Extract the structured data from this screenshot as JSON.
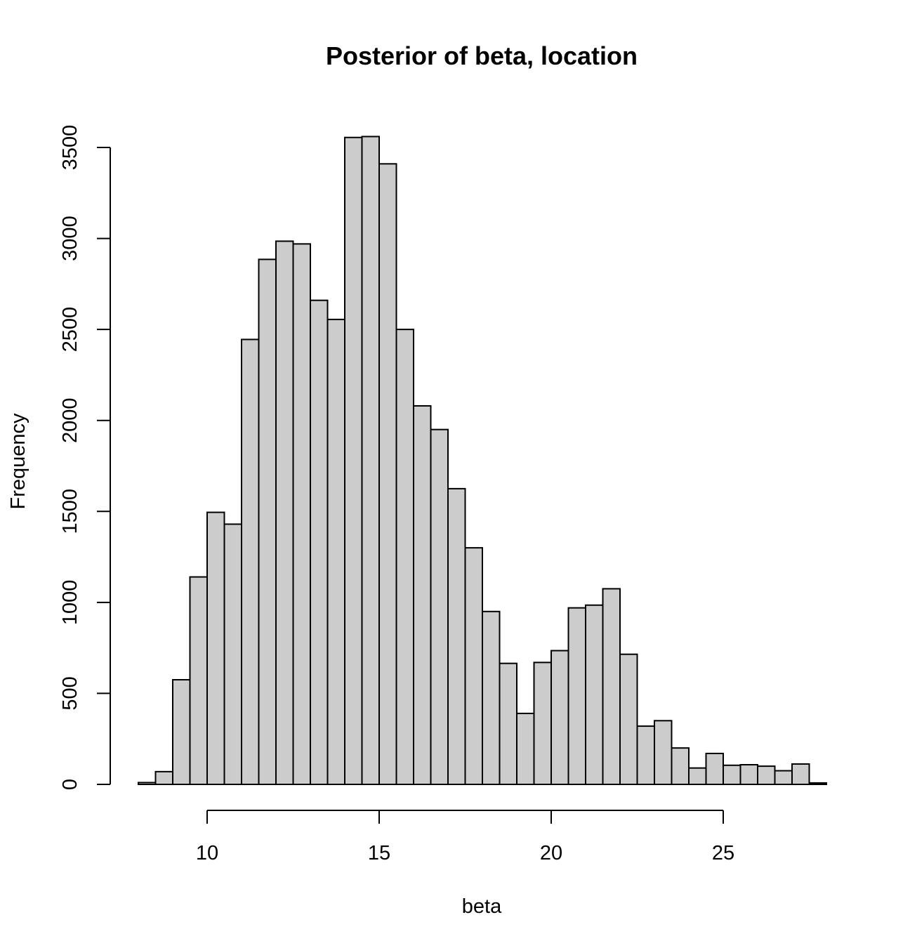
{
  "chart_data": {
    "type": "bar",
    "subtype": "histogram",
    "title": "Posterior of beta, location",
    "xlabel": "beta",
    "ylabel": "Frequency",
    "xlim": [
      7.5,
      28
    ],
    "ylim": [
      0,
      3500
    ],
    "x_ticks": [
      10,
      15,
      20,
      25
    ],
    "y_ticks": [
      0,
      500,
      1000,
      1500,
      2000,
      2500,
      3000,
      3500
    ],
    "bin_width": 0.5,
    "bins": [
      {
        "start": 8.0,
        "end": 8.5,
        "count": 10
      },
      {
        "start": 8.5,
        "end": 9.0,
        "count": 70
      },
      {
        "start": 9.0,
        "end": 9.5,
        "count": 575
      },
      {
        "start": 9.5,
        "end": 10.0,
        "count": 1140
      },
      {
        "start": 10.0,
        "end": 10.5,
        "count": 1495
      },
      {
        "start": 10.5,
        "end": 11.0,
        "count": 1430
      },
      {
        "start": 11.0,
        "end": 11.5,
        "count": 2445
      },
      {
        "start": 11.5,
        "end": 12.0,
        "count": 2885
      },
      {
        "start": 12.0,
        "end": 12.5,
        "count": 2985
      },
      {
        "start": 12.5,
        "end": 13.0,
        "count": 2970
      },
      {
        "start": 13.0,
        "end": 13.5,
        "count": 2660
      },
      {
        "start": 13.5,
        "end": 14.0,
        "count": 2555
      },
      {
        "start": 14.0,
        "end": 14.5,
        "count": 3555
      },
      {
        "start": 14.5,
        "end": 15.0,
        "count": 3560
      },
      {
        "start": 15.0,
        "end": 15.5,
        "count": 3410
      },
      {
        "start": 15.5,
        "end": 16.0,
        "count": 2500
      },
      {
        "start": 16.0,
        "end": 16.5,
        "count": 2080
      },
      {
        "start": 16.5,
        "end": 17.0,
        "count": 1950
      },
      {
        "start": 17.0,
        "end": 17.5,
        "count": 1625
      },
      {
        "start": 17.5,
        "end": 18.0,
        "count": 1300
      },
      {
        "start": 18.0,
        "end": 18.5,
        "count": 950
      },
      {
        "start": 18.5,
        "end": 19.0,
        "count": 665
      },
      {
        "start": 19.0,
        "end": 19.5,
        "count": 390
      },
      {
        "start": 19.5,
        "end": 20.0,
        "count": 670
      },
      {
        "start": 20.0,
        "end": 20.5,
        "count": 735
      },
      {
        "start": 20.5,
        "end": 21.0,
        "count": 970
      },
      {
        "start": 21.0,
        "end": 21.5,
        "count": 985
      },
      {
        "start": 21.5,
        "end": 22.0,
        "count": 1075
      },
      {
        "start": 22.0,
        "end": 22.5,
        "count": 715
      },
      {
        "start": 22.5,
        "end": 23.0,
        "count": 320
      },
      {
        "start": 23.0,
        "end": 23.5,
        "count": 350
      },
      {
        "start": 23.5,
        "end": 24.0,
        "count": 200
      },
      {
        "start": 24.0,
        "end": 24.5,
        "count": 90
      },
      {
        "start": 24.5,
        "end": 25.0,
        "count": 170
      },
      {
        "start": 25.0,
        "end": 25.5,
        "count": 105
      },
      {
        "start": 25.5,
        "end": 26.0,
        "count": 108
      },
      {
        "start": 26.0,
        "end": 26.5,
        "count": 100
      },
      {
        "start": 26.5,
        "end": 27.0,
        "count": 75
      },
      {
        "start": 27.0,
        "end": 27.5,
        "count": 112
      },
      {
        "start": 27.5,
        "end": 28.0,
        "count": 8
      }
    ],
    "colors": {
      "bar_fill": "#cccccc",
      "bar_stroke": "#000000",
      "background": "#ffffff"
    }
  }
}
